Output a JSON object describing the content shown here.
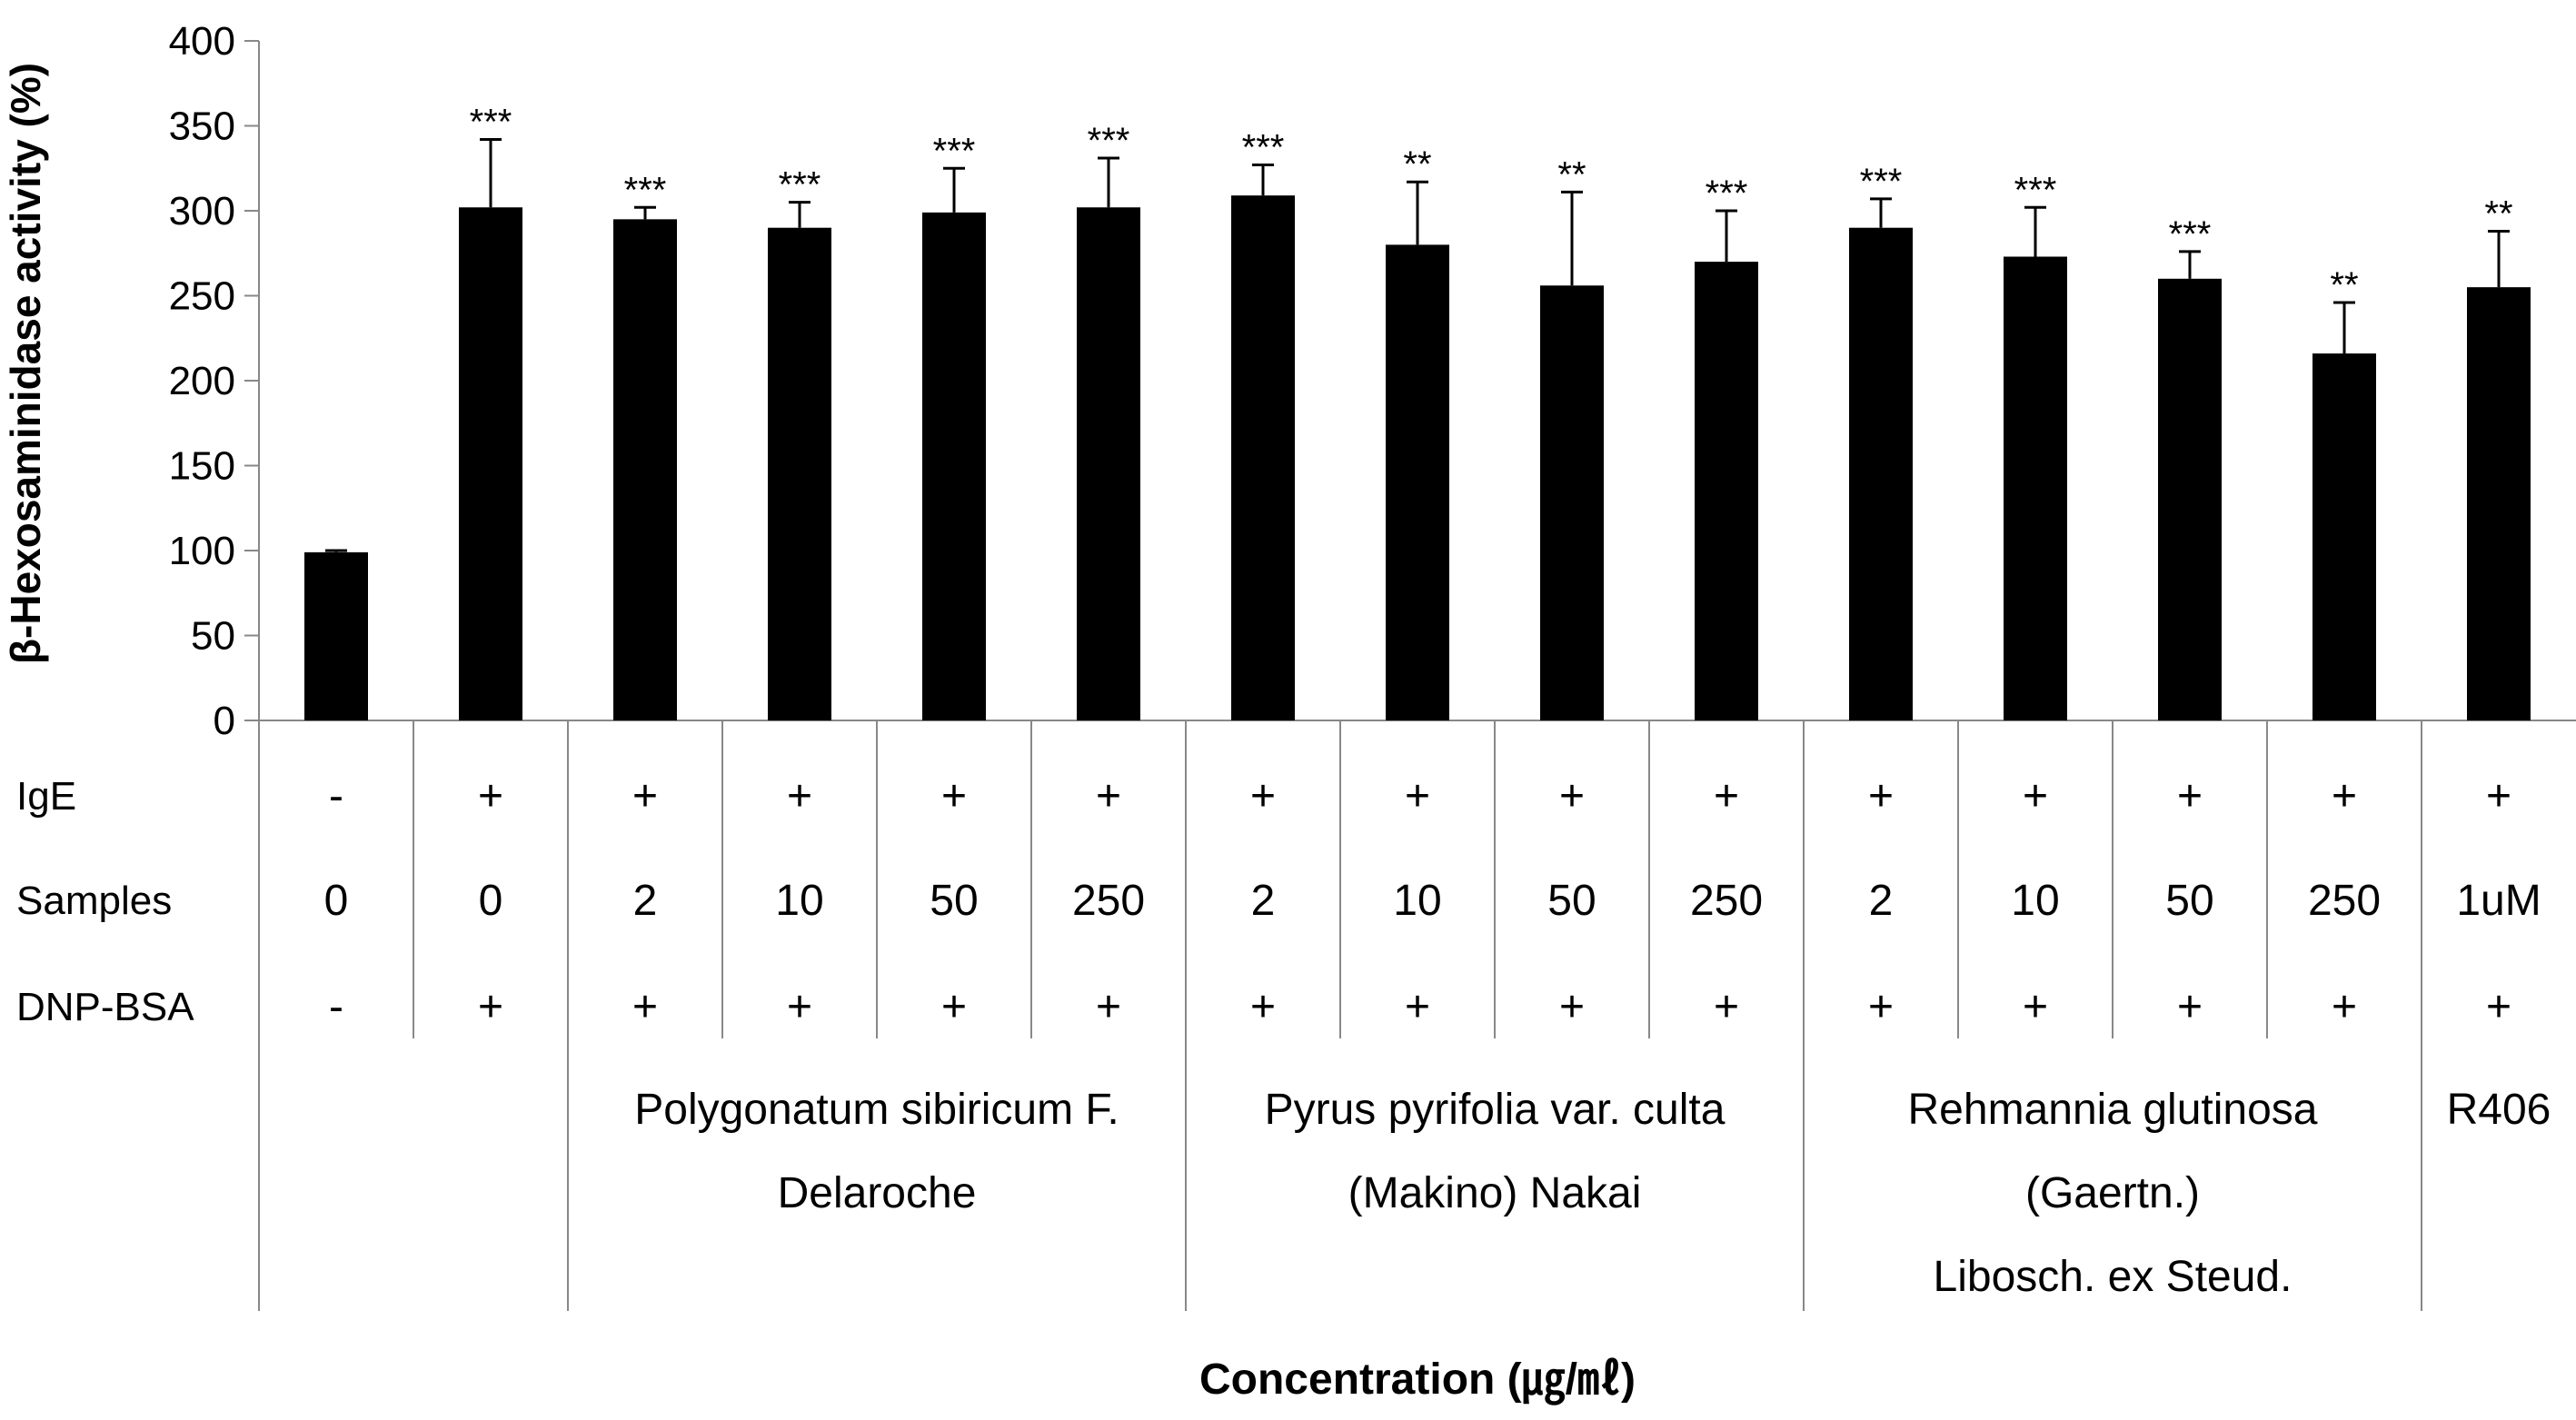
{
  "chart_data": {
    "type": "bar",
    "ylabel": "β-Hexosaminidase activity (%)",
    "xlabel": "Concentration (㎍/㎖)",
    "ylim": [
      0,
      400
    ],
    "yticks": [
      0,
      50,
      100,
      150,
      200,
      250,
      300,
      350,
      400
    ],
    "bar_color": "#000000",
    "values": [
      99,
      302,
      295,
      290,
      299,
      302,
      309,
      280,
      256,
      270,
      290,
      273,
      260,
      216,
      255
    ],
    "errors": [
      1,
      40,
      7,
      15,
      26,
      29,
      18,
      37,
      55,
      30,
      17,
      29,
      16,
      30,
      33
    ],
    "significance": [
      "",
      "***",
      "***",
      "***",
      "***",
      "***",
      "***",
      "**",
      "**",
      "***",
      "***",
      "***",
      "***",
      "**",
      "**"
    ],
    "table": {
      "rows": [
        {
          "label": "IgE",
          "cells": [
            "-",
            "+",
            "+",
            "+",
            "+",
            "+",
            "+",
            "+",
            "+",
            "+",
            "+",
            "+",
            "+",
            "+",
            "+"
          ]
        },
        {
          "label": "Samples",
          "cells": [
            "0",
            "0",
            "2",
            "10",
            "50",
            "250",
            "2",
            "10",
            "50",
            "250",
            "2",
            "10",
            "50",
            "250",
            "1uM"
          ]
        },
        {
          "label": "DNP-BSA",
          "cells": [
            "-",
            "+",
            "+",
            "+",
            "+",
            "+",
            "+",
            "+",
            "+",
            "+",
            "+",
            "+",
            "+",
            "+",
            "+"
          ]
        }
      ],
      "groups": [
        {
          "lines": []
        },
        {
          "lines": [
            "Polygonatum sibiricum F.",
            "Delaroche"
          ]
        },
        {
          "lines": [
            "Pyrus pyrifolia var. culta",
            "(Makino) Nakai"
          ]
        },
        {
          "lines": [
            "Rehmannia glutinosa",
            "(Gaertn.)",
            "Libosch. ex Steud."
          ]
        },
        {
          "lines": [
            "R406"
          ]
        }
      ]
    }
  }
}
